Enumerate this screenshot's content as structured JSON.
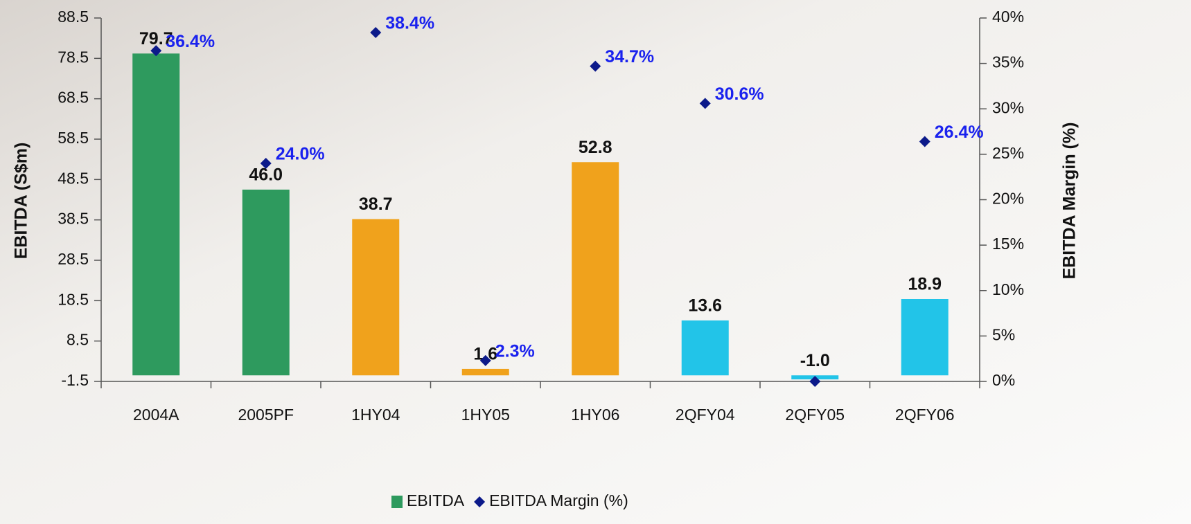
{
  "chart_data": {
    "type": "bar",
    "categories": [
      "2004A",
      "2005PF",
      "1HY04",
      "1HY05",
      "1HY06",
      "2QFY04",
      "2QFY05",
      "2QFY06"
    ],
    "series": [
      {
        "name": "EBITDA",
        "type": "bar",
        "color": "#2e9a5e",
        "colors": [
          "#2e9a5e",
          "#2e9a5e",
          "#f0a21c",
          "#f0a21c",
          "#f0a21c",
          "#22c4e8",
          "#22c4e8",
          "#22c4e8"
        ],
        "values": [
          79.7,
          46.0,
          38.7,
          1.6,
          52.8,
          13.6,
          -1.0,
          18.9
        ],
        "value_labels": [
          "79.7",
          "46.0",
          "38.7",
          "1.6",
          "52.8",
          "13.6",
          "-1.0",
          "18.9"
        ],
        "label_color": "#111111"
      },
      {
        "name": "EBITDA Margin (%)",
        "type": "scatter",
        "axis": "y2",
        "color": "#0c1a8a",
        "marker": "diamond",
        "values": [
          36.4,
          24.0,
          38.4,
          2.3,
          34.7,
          30.6,
          0,
          26.4
        ],
        "value_labels": [
          "36.4%",
          "24.0%",
          "38.4%",
          "2.3%",
          "34.7%",
          "30.6%",
          null,
          "26.4%"
        ],
        "label_color": "#1a22ee"
      }
    ],
    "ylabel": "EBITDA (S$m)",
    "y2label": "EBITDA Margin (%)",
    "ylim": [
      -1.5,
      88.5
    ],
    "yticks": [
      -1.5,
      8.5,
      18.5,
      28.5,
      38.5,
      48.5,
      58.5,
      68.5,
      78.5,
      88.5
    ],
    "y2lim": [
      0,
      40
    ],
    "y2ticks": [
      {
        "value": 0,
        "label": "0%"
      },
      {
        "value": 5,
        "label": "5%"
      },
      {
        "value": 10,
        "label": "10%"
      },
      {
        "value": 15,
        "label": "15%"
      },
      {
        "value": 20,
        "label": "20%"
      },
      {
        "value": 25,
        "label": "25%"
      },
      {
        "value": 30,
        "label": "30%"
      },
      {
        "value": 35,
        "label": "35%"
      },
      {
        "value": 40,
        "label": "40%"
      }
    ],
    "legend": "bottom"
  }
}
